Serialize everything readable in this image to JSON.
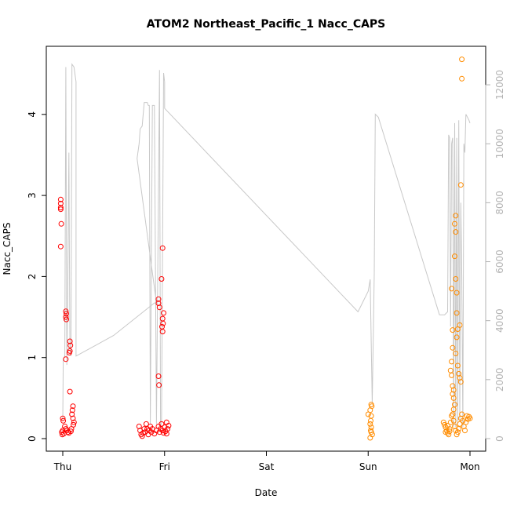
{
  "chart_data": {
    "type": "scatter",
    "title": "ATOM2 Northeast_Pacific_1 Nacc_CAPS",
    "xlabel": "Date",
    "ylabel": "Nacc_CAPS",
    "x_ticks": [
      "Thu",
      "Fri",
      "Sat",
      "Sun",
      "Mon"
    ],
    "ylim": [
      0,
      4.75
    ],
    "y_ticks": [
      "0",
      "1",
      "2",
      "3",
      "4"
    ],
    "y2lim": [
      0,
      12800
    ],
    "y2_ticks": [
      "0",
      "2000",
      "4000",
      "6000",
      "8000",
      "10000",
      "12000"
    ],
    "colors": {
      "series_red": "#ff0000",
      "series_orange": "#ff8c00",
      "altitude_line": "#c8c8c8",
      "right_axis": "#b3b3b3"
    },
    "series": [
      {
        "color": "#ff0000",
        "points": [
          [
            -0.02,
            2.95
          ],
          [
            -0.02,
            2.9
          ],
          [
            -0.02,
            2.85
          ],
          [
            -0.02,
            2.83
          ],
          [
            -0.015,
            2.65
          ],
          [
            -0.02,
            2.37
          ],
          [
            0.03,
            1.57
          ],
          [
            0.035,
            1.54
          ],
          [
            0.03,
            1.5
          ],
          [
            0.035,
            1.47
          ],
          [
            0.03,
            0.98
          ],
          [
            0.07,
            1.2
          ],
          [
            0.075,
            1.15
          ],
          [
            0.07,
            1.08
          ],
          [
            0.065,
            1.06
          ],
          [
            0.07,
            0.58
          ],
          [
            0.1,
            0.4
          ],
          [
            0.095,
            0.35
          ],
          [
            0.09,
            0.3
          ],
          [
            0.1,
            0.25
          ],
          [
            0.11,
            0.2
          ],
          [
            0.105,
            0.17
          ],
          [
            0.0,
            0.25
          ],
          [
            0.005,
            0.22
          ],
          [
            0.02,
            0.15
          ],
          [
            0.03,
            0.12
          ],
          [
            0.04,
            0.1
          ],
          [
            0.05,
            0.08
          ],
          [
            0.0,
            0.1
          ],
          [
            -0.01,
            0.08
          ],
          [
            -0.005,
            0.05
          ],
          [
            0.01,
            0.06
          ],
          [
            0.06,
            0.07
          ],
          [
            0.08,
            0.09
          ],
          [
            0.085,
            0.12
          ],
          [
            0.75,
            0.15
          ],
          [
            0.76,
            0.1
          ],
          [
            0.77,
            0.05
          ],
          [
            0.78,
            0.03
          ],
          [
            0.79,
            0.07
          ],
          [
            0.8,
            0.12
          ],
          [
            0.81,
            0.08
          ],
          [
            0.82,
            0.18
          ],
          [
            0.83,
            0.12
          ],
          [
            0.84,
            0.05
          ],
          [
            0.85,
            0.1
          ],
          [
            0.86,
            0.15
          ],
          [
            0.87,
            0.08
          ],
          [
            0.88,
            0.12
          ],
          [
            0.9,
            0.06
          ],
          [
            0.92,
            0.1
          ],
          [
            0.94,
            0.15
          ],
          [
            0.95,
            0.08
          ],
          [
            0.96,
            0.12
          ],
          [
            0.97,
            0.18
          ],
          [
            0.98,
            0.1
          ],
          [
            0.99,
            0.07
          ],
          [
            1.0,
            0.14
          ],
          [
            1.01,
            0.09
          ],
          [
            1.02,
            0.2
          ],
          [
            1.03,
            0.12
          ],
          [
            1.04,
            0.16
          ],
          [
            1.02,
            0.06
          ],
          [
            0.94,
            1.72
          ],
          [
            0.94,
            1.67
          ],
          [
            0.95,
            1.62
          ],
          [
            0.94,
            0.77
          ],
          [
            0.945,
            0.66
          ],
          [
            0.98,
            2.35
          ],
          [
            0.97,
            1.97
          ],
          [
            0.99,
            1.55
          ],
          [
            0.98,
            1.48
          ],
          [
            0.985,
            1.42
          ],
          [
            0.975,
            1.38
          ],
          [
            0.98,
            1.32
          ]
        ]
      },
      {
        "color": "#ff8c00",
        "points": [
          [
            3.03,
            0.42
          ],
          [
            3.035,
            0.4
          ],
          [
            3.02,
            0.35
          ],
          [
            3.03,
            0.28
          ],
          [
            3.025,
            0.22
          ],
          [
            3.02,
            0.18
          ],
          [
            3.03,
            0.14
          ],
          [
            3.025,
            0.1
          ],
          [
            3.03,
            0.08
          ],
          [
            3.02,
            0.01
          ],
          [
            3.04,
            0.05
          ],
          [
            3.0,
            0.3
          ],
          [
            3.74,
            0.2
          ],
          [
            3.75,
            0.17
          ],
          [
            3.76,
            0.14
          ],
          [
            3.77,
            0.1
          ],
          [
            3.78,
            0.07
          ],
          [
            3.79,
            0.05
          ],
          [
            3.8,
            0.12
          ],
          [
            3.81,
            0.2
          ],
          [
            3.82,
            0.28
          ],
          [
            3.83,
            0.3
          ],
          [
            3.84,
            0.22
          ],
          [
            3.85,
            0.15
          ],
          [
            3.86,
            0.1
          ],
          [
            3.87,
            0.05
          ],
          [
            3.88,
            0.08
          ],
          [
            3.89,
            0.12
          ],
          [
            3.9,
            0.18
          ],
          [
            3.91,
            0.25
          ],
          [
            3.92,
            0.3
          ],
          [
            3.93,
            0.22
          ],
          [
            3.94,
            0.15
          ],
          [
            3.95,
            0.1
          ],
          [
            3.96,
            0.2
          ],
          [
            3.97,
            0.28
          ],
          [
            3.98,
            0.24
          ],
          [
            3.99,
            0.27
          ],
          [
            4.0,
            0.25
          ],
          [
            3.76,
            0.08
          ],
          [
            3.78,
            0.16
          ],
          [
            3.8,
            0.09
          ],
          [
            3.82,
            1.85
          ],
          [
            3.83,
            1.34
          ],
          [
            3.83,
            1.12
          ],
          [
            3.82,
            0.95
          ],
          [
            3.81,
            0.84
          ],
          [
            3.82,
            0.78
          ],
          [
            3.83,
            0.65
          ],
          [
            3.84,
            0.6
          ],
          [
            3.83,
            0.55
          ],
          [
            3.84,
            0.5
          ],
          [
            3.85,
            0.42
          ],
          [
            3.84,
            0.36
          ],
          [
            3.86,
            2.75
          ],
          [
            3.85,
            2.65
          ],
          [
            3.86,
            2.55
          ],
          [
            3.85,
            2.25
          ],
          [
            3.86,
            1.97
          ],
          [
            3.87,
            1.8
          ],
          [
            3.87,
            1.55
          ],
          [
            3.88,
            1.35
          ],
          [
            3.87,
            1.25
          ],
          [
            3.86,
            1.05
          ],
          [
            3.88,
            0.9
          ],
          [
            3.91,
            3.13
          ],
          [
            3.9,
            1.4
          ],
          [
            3.89,
            0.8
          ],
          [
            3.9,
            0.75
          ],
          [
            3.91,
            0.7
          ],
          [
            3.92,
            4.68
          ],
          [
            3.92,
            4.44
          ]
        ]
      }
    ],
    "altitude_line": [
      [
        0.0,
        600
      ],
      [
        0.005,
        2700
      ],
      [
        0.02,
        2800
      ],
      [
        0.03,
        12600
      ],
      [
        0.04,
        2500
      ],
      [
        0.05,
        5500
      ],
      [
        0.06,
        9700
      ],
      [
        0.07,
        3000
      ],
      [
        0.08,
        2800
      ],
      [
        0.09,
        12700
      ],
      [
        0.11,
        12600
      ],
      [
        0.13,
        12100
      ],
      [
        0.13,
        2800
      ],
      [
        0.5,
        3500
      ],
      [
        0.9,
        4600
      ],
      [
        0.92,
        4600
      ],
      [
        0.73,
        9500
      ],
      [
        0.75,
        10000
      ],
      [
        0.76,
        10500
      ],
      [
        0.78,
        10600
      ],
      [
        0.8,
        11400
      ],
      [
        0.83,
        11400
      ],
      [
        0.84,
        11300
      ],
      [
        0.85,
        11300
      ],
      [
        0.86,
        500
      ],
      [
        0.88,
        11300
      ],
      [
        0.9,
        11300
      ],
      [
        0.92,
        500
      ],
      [
        0.95,
        12500
      ],
      [
        0.96,
        400
      ],
      [
        0.97,
        600
      ],
      [
        0.99,
        12400
      ],
      [
        1.0,
        12100
      ],
      [
        1.0,
        11200
      ],
      [
        2.9,
        4300
      ],
      [
        3.0,
        5000
      ],
      [
        3.02,
        5400
      ],
      [
        3.04,
        1200
      ],
      [
        3.06,
        5600
      ],
      [
        3.07,
        11000
      ],
      [
        3.1,
        10900
      ],
      [
        3.7,
        4200
      ],
      [
        3.75,
        4200
      ],
      [
        3.78,
        4300
      ],
      [
        3.79,
        10300
      ],
      [
        3.8,
        10200
      ],
      [
        3.81,
        3800
      ],
      [
        3.82,
        10000
      ],
      [
        3.83,
        10200
      ],
      [
        3.84,
        400
      ],
      [
        3.85,
        10700
      ],
      [
        3.86,
        400
      ],
      [
        3.87,
        10200
      ],
      [
        3.88,
        500
      ],
      [
        3.89,
        10800
      ],
      [
        3.9,
        600
      ],
      [
        3.91,
        8000
      ],
      [
        3.92,
        5500
      ],
      [
        3.93,
        400
      ],
      [
        3.94,
        10000
      ],
      [
        3.95,
        9700
      ],
      [
        3.96,
        11000
      ],
      [
        3.99,
        10800
      ],
      [
        4.0,
        10700
      ]
    ]
  }
}
